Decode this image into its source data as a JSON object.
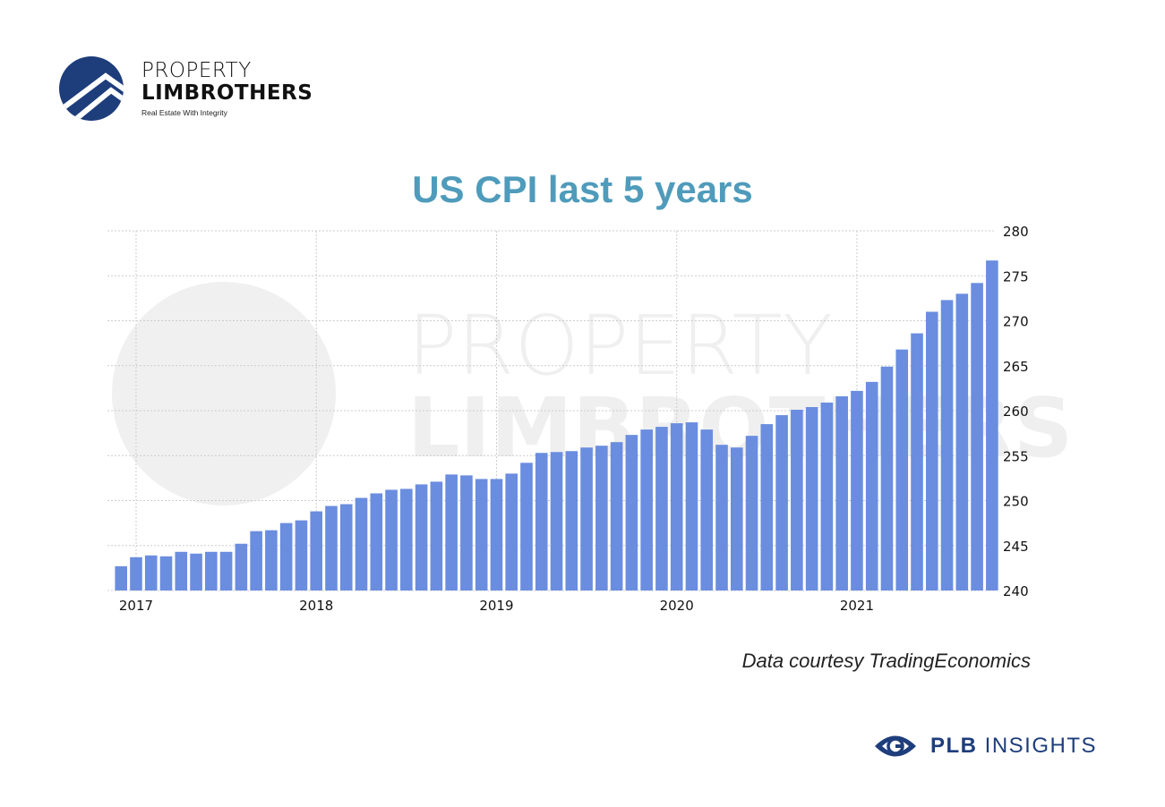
{
  "logo": {
    "line1": "PROPERTY",
    "line2": "LIMBROTHERS",
    "tagline": "Real Estate With Integrity"
  },
  "footer": {
    "brand_bold": "PLB",
    "brand_rest": "INSIGHTS",
    "icon": "eye-icon"
  },
  "credit": "Data courtesy TradingEconomics",
  "colors": {
    "bar": "#6a8ddf",
    "title": "#4f9bbb",
    "brand": "#1e3d7b"
  },
  "chart_data": {
    "type": "bar",
    "title": "US CPI last 5 years",
    "xlabel": "",
    "ylabel": "",
    "ylim": [
      240,
      280
    ],
    "yticks": [
      240,
      245,
      250,
      255,
      260,
      265,
      270,
      275,
      280
    ],
    "y_axis_side": "right",
    "grid": true,
    "xtick_labels": [
      {
        "label": "2017",
        "index": 1
      },
      {
        "label": "2018",
        "index": 13
      },
      {
        "label": "2019",
        "index": 25
      },
      {
        "label": "2020",
        "index": 37
      },
      {
        "label": "2021",
        "index": 49
      }
    ],
    "categories": [
      "2016-12",
      "2017-01",
      "2017-02",
      "2017-03",
      "2017-04",
      "2017-05",
      "2017-06",
      "2017-07",
      "2017-08",
      "2017-09",
      "2017-10",
      "2017-11",
      "2017-12",
      "2018-01",
      "2018-02",
      "2018-03",
      "2018-04",
      "2018-05",
      "2018-06",
      "2018-07",
      "2018-08",
      "2018-09",
      "2018-10",
      "2018-11",
      "2018-12",
      "2019-01",
      "2019-02",
      "2019-03",
      "2019-04",
      "2019-05",
      "2019-06",
      "2019-07",
      "2019-08",
      "2019-09",
      "2019-10",
      "2019-11",
      "2019-12",
      "2020-01",
      "2020-02",
      "2020-03",
      "2020-04",
      "2020-05",
      "2020-06",
      "2020-07",
      "2020-08",
      "2020-09",
      "2020-10",
      "2020-11",
      "2020-12",
      "2021-01",
      "2021-02",
      "2021-03",
      "2021-04",
      "2021-05",
      "2021-06",
      "2021-07",
      "2021-08",
      "2021-09",
      "2021-10"
    ],
    "values": [
      242.7,
      243.7,
      243.9,
      243.8,
      244.3,
      244.1,
      244.3,
      244.3,
      245.2,
      246.6,
      246.7,
      247.5,
      247.8,
      248.8,
      249.4,
      249.6,
      250.3,
      250.8,
      251.2,
      251.3,
      251.8,
      252.1,
      252.9,
      252.8,
      252.4,
      252.4,
      253.0,
      254.2,
      255.3,
      255.4,
      255.5,
      255.9,
      256.1,
      256.5,
      257.3,
      257.9,
      258.2,
      258.6,
      258.7,
      257.9,
      256.2,
      255.9,
      257.2,
      258.5,
      259.5,
      260.1,
      260.4,
      260.9,
      261.6,
      262.2,
      263.2,
      264.9,
      266.8,
      268.6,
      271.0,
      272.3,
      273.0,
      274.2,
      276.7
    ]
  }
}
